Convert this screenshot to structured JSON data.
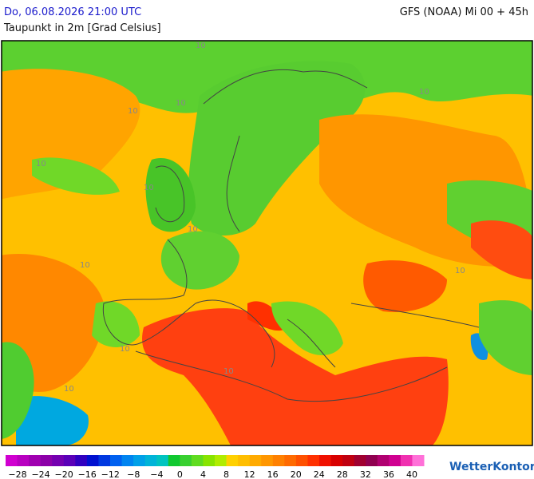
{
  "header": {
    "date": "Do, 06.08.2026 21:00 UTC",
    "parameter": "Taupunkt in 2m [Grad Celsius]",
    "model": "GFS (NOAA) Mi 00 + 45h"
  },
  "map": {
    "contour_labels": [
      "10",
      "10",
      "10",
      "10",
      "10",
      "10",
      "10",
      "10",
      "10",
      "10",
      "10",
      "10"
    ]
  },
  "legend": {
    "labels": [
      "−28",
      "−24",
      "−20",
      "−16",
      "−12",
      "−8",
      "−4",
      "0",
      "4",
      "8",
      "12",
      "16",
      "20",
      "24",
      "28",
      "32",
      "36",
      "40"
    ],
    "colors": [
      "#d000d0",
      "#b800c0",
      "#a000b0",
      "#8c00a8",
      "#7400b0",
      "#5a00b8",
      "#3000c0",
      "#0010d0",
      "#0038e0",
      "#0060f0",
      "#0084f0",
      "#00a0e8",
      "#00b4d8",
      "#00c4c0",
      "#10c830",
      "#38d030",
      "#60dc20",
      "#88e400",
      "#b0ec00",
      "#ffd000",
      "#ffbe00",
      "#ffaa00",
      "#ff9600",
      "#ff8000",
      "#ff6a00",
      "#ff5000",
      "#ff3000",
      "#f01000",
      "#d80000",
      "#c00010",
      "#a00030",
      "#900050",
      "#b00070",
      "#d00090",
      "#f030b0",
      "#ff70d8"
    ]
  },
  "brand": "WetterKontor"
}
